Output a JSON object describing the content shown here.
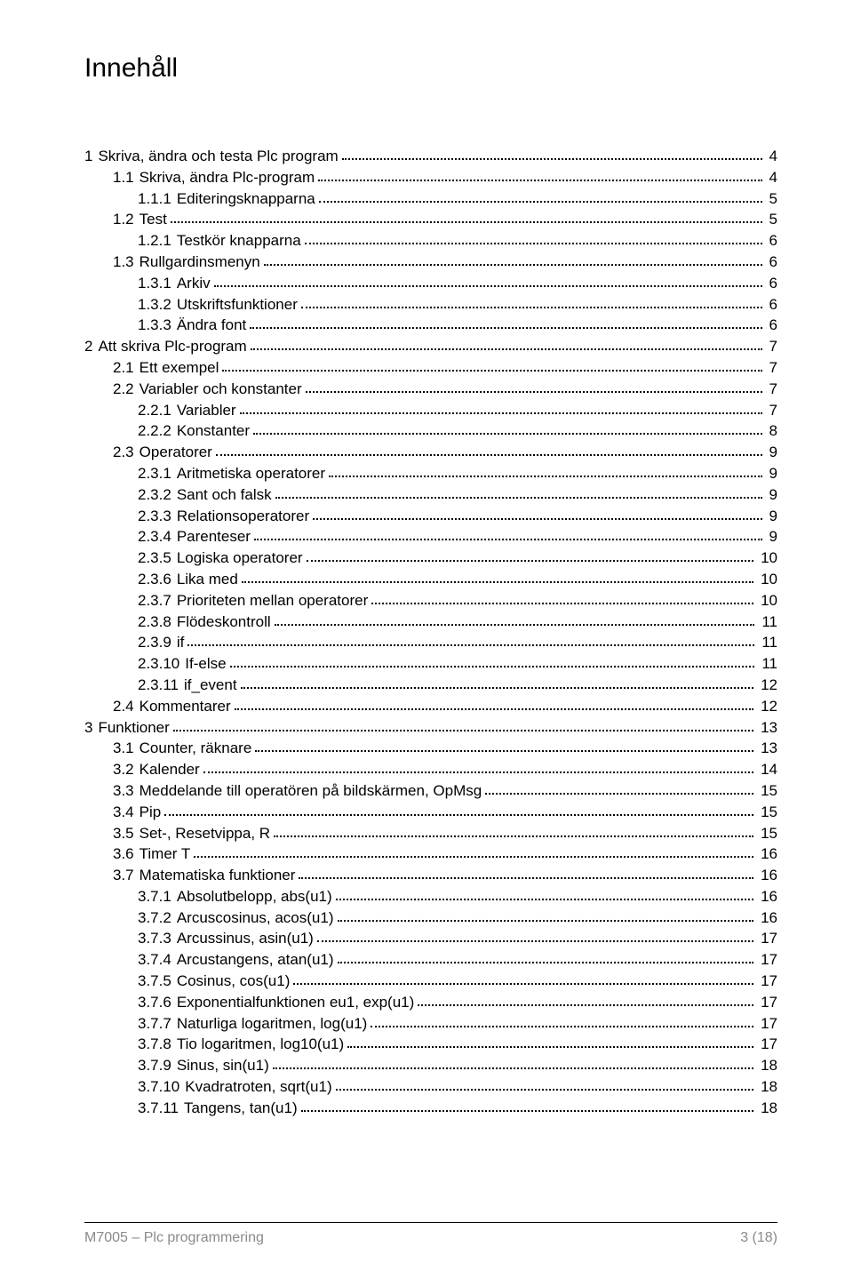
{
  "title": "Innehåll",
  "footer": {
    "left": "M7005 – Plc programmering",
    "right": "3 (18)"
  },
  "toc": [
    {
      "level": 0,
      "num": "1",
      "label": "Skriva, ändra och testa Plc program",
      "page": "4"
    },
    {
      "level": 1,
      "num": "1.1",
      "label": "Skriva, ändra Plc-program",
      "page": "4"
    },
    {
      "level": 2,
      "num": "1.1.1",
      "label": "Editeringsknapparna",
      "page": "5"
    },
    {
      "level": 1,
      "num": "1.2",
      "label": "Test",
      "page": "5"
    },
    {
      "level": 2,
      "num": "1.2.1",
      "label": "Testkör knapparna",
      "page": "6"
    },
    {
      "level": 1,
      "num": "1.3",
      "label": "Rullgardinsmenyn",
      "page": "6"
    },
    {
      "level": 2,
      "num": "1.3.1",
      "label": "Arkiv",
      "page": "6"
    },
    {
      "level": 2,
      "num": "1.3.2",
      "label": "Utskriftsfunktioner",
      "page": "6"
    },
    {
      "level": 2,
      "num": "1.3.3",
      "label": "Ändra font",
      "page": "6"
    },
    {
      "level": 0,
      "num": "2",
      "label": "Att skriva Plc-program",
      "page": "7"
    },
    {
      "level": 1,
      "num": "2.1",
      "label": "Ett exempel",
      "page": "7"
    },
    {
      "level": 1,
      "num": "2.2",
      "label": "Variabler och konstanter",
      "page": "7"
    },
    {
      "level": 2,
      "num": "2.2.1",
      "label": "Variabler",
      "page": "7"
    },
    {
      "level": 2,
      "num": "2.2.2",
      "label": "Konstanter",
      "page": "8"
    },
    {
      "level": 1,
      "num": "2.3",
      "label": "Operatorer",
      "page": "9"
    },
    {
      "level": 2,
      "num": "2.3.1",
      "label": "Aritmetiska operatorer",
      "page": "9"
    },
    {
      "level": 2,
      "num": "2.3.2",
      "label": "Sant och falsk",
      "page": "9"
    },
    {
      "level": 2,
      "num": "2.3.3",
      "label": "Relationsoperatorer",
      "page": "9"
    },
    {
      "level": 2,
      "num": "2.3.4",
      "label": "Parenteser",
      "page": "9"
    },
    {
      "level": 2,
      "num": "2.3.5",
      "label": "Logiska operatorer",
      "page": "10"
    },
    {
      "level": 2,
      "num": "2.3.6",
      "label": "Lika med",
      "page": "10"
    },
    {
      "level": 2,
      "num": "2.3.7",
      "label": "Prioriteten mellan operatorer",
      "page": "10"
    },
    {
      "level": 2,
      "num": "2.3.8",
      "label": "Flödeskontroll",
      "page": "11"
    },
    {
      "level": 2,
      "num": "2.3.9",
      "label": "if",
      "page": "11"
    },
    {
      "level": 2,
      "num": "2.3.10",
      "label": "If-else",
      "page": "11"
    },
    {
      "level": 2,
      "num": "2.3.11",
      "label": "if_event",
      "page": "12"
    },
    {
      "level": 1,
      "num": "2.4",
      "label": "Kommentarer",
      "page": "12"
    },
    {
      "level": 0,
      "num": "3",
      "label": "Funktioner",
      "page": "13"
    },
    {
      "level": 1,
      "num": "3.1",
      "label": "Counter, räknare",
      "page": "13"
    },
    {
      "level": 1,
      "num": "3.2",
      "label": "Kalender",
      "page": "14"
    },
    {
      "level": 1,
      "num": "3.3",
      "label": "Meddelande till operatören på bildskärmen, OpMsg",
      "page": "15"
    },
    {
      "level": 1,
      "num": "3.4",
      "label": "Pip",
      "page": "15"
    },
    {
      "level": 1,
      "num": "3.5",
      "label": "Set-, Resetvippa, R",
      "page": "15"
    },
    {
      "level": 1,
      "num": "3.6",
      "label": "Timer T",
      "page": "16"
    },
    {
      "level": 1,
      "num": "3.7",
      "label": "Matematiska funktioner",
      "page": "16"
    },
    {
      "level": 2,
      "num": "3.7.1",
      "label": "Absolutbelopp, abs(u1)",
      "page": "16"
    },
    {
      "level": 2,
      "num": "3.7.2",
      "label": "Arcuscosinus, acos(u1)",
      "page": "16"
    },
    {
      "level": 2,
      "num": "3.7.3",
      "label": "Arcussinus, asin(u1)",
      "page": "17"
    },
    {
      "level": 2,
      "num": "3.7.4",
      "label": "Arcustangens, atan(u1)",
      "page": "17"
    },
    {
      "level": 2,
      "num": "3.7.5",
      "label": "Cosinus, cos(u1)",
      "page": "17"
    },
    {
      "level": 2,
      "num": "3.7.6",
      "label": "Exponentialfunktionen eu1, exp(u1)",
      "page": "17"
    },
    {
      "level": 2,
      "num": "3.7.7",
      "label": "Naturliga logaritmen, log(u1)",
      "page": "17"
    },
    {
      "level": 2,
      "num": "3.7.8",
      "label": "Tio logaritmen, log10(u1)",
      "page": "17"
    },
    {
      "level": 2,
      "num": "3.7.9",
      "label": "Sinus, sin(u1)",
      "page": "18"
    },
    {
      "level": 2,
      "num": "3.7.10",
      "label": "Kvadratroten, sqrt(u1)",
      "page": "18"
    },
    {
      "level": 2,
      "num": "3.7.11",
      "label": "Tangens, tan(u1)",
      "page": "18"
    }
  ]
}
